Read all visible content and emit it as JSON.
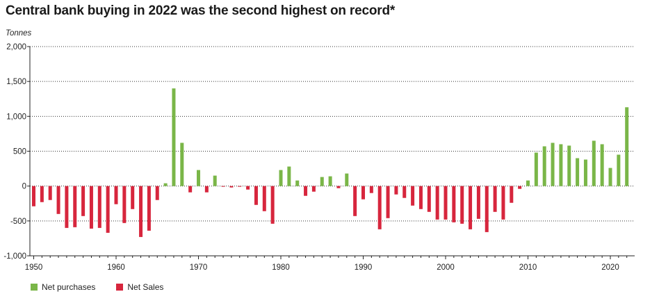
{
  "title": "Central bank buying in 2022 was the second highest on record*",
  "chart_data": {
    "type": "bar",
    "unit_label": "Tonnes",
    "ylim": [
      -1000,
      2000
    ],
    "y_ticks": [
      -1000,
      -500,
      0,
      500,
      1000,
      1500,
      2000
    ],
    "y_tick_labels": [
      "-1,000",
      "-500",
      "0",
      "500",
      "1,000",
      "1,500",
      "2,000"
    ],
    "x_ticks": [
      1950,
      1960,
      1970,
      1980,
      1990,
      2000,
      2010,
      2020
    ],
    "x_tick_labels": [
      "1950",
      "1960",
      "1970",
      "1980",
      "1990",
      "2000",
      "2010",
      "2020"
    ],
    "grid": "horizontal dotted",
    "legend_position": "bottom-left",
    "legend": [
      {
        "name": "Net purchases",
        "color": "#7ab648"
      },
      {
        "name": "Net Sales",
        "color": "#d7263d"
      }
    ],
    "categories": [
      1950,
      1951,
      1952,
      1953,
      1954,
      1955,
      1956,
      1957,
      1958,
      1959,
      1960,
      1961,
      1962,
      1963,
      1964,
      1965,
      1966,
      1967,
      1968,
      1969,
      1970,
      1971,
      1972,
      1973,
      1974,
      1975,
      1976,
      1977,
      1978,
      1979,
      1980,
      1981,
      1982,
      1983,
      1984,
      1985,
      1986,
      1987,
      1988,
      1989,
      1990,
      1991,
      1992,
      1993,
      1994,
      1995,
      1996,
      1997,
      1998,
      1999,
      2000,
      2001,
      2002,
      2003,
      2004,
      2005,
      2006,
      2007,
      2008,
      2009,
      2010,
      2011,
      2012,
      2013,
      2014,
      2015,
      2016,
      2017,
      2018,
      2019,
      2020,
      2021,
      2022
    ],
    "values": [
      -290,
      -230,
      -200,
      -400,
      -600,
      -590,
      -430,
      -610,
      -600,
      -670,
      -260,
      -530,
      -330,
      -730,
      -640,
      -200,
      40,
      1400,
      620,
      -90,
      230,
      -90,
      150,
      -10,
      -20,
      -10,
      -50,
      -270,
      -360,
      -540,
      230,
      280,
      80,
      -140,
      -80,
      130,
      140,
      -30,
      180,
      -430,
      -190,
      -100,
      -620,
      -460,
      -120,
      -170,
      -280,
      -330,
      -370,
      -480,
      -480,
      -520,
      -540,
      -620,
      -470,
      -660,
      -370,
      -480,
      -240,
      -40,
      80,
      480,
      570,
      620,
      600,
      580,
      400,
      380,
      650,
      600,
      260,
      450,
      1130
    ]
  }
}
